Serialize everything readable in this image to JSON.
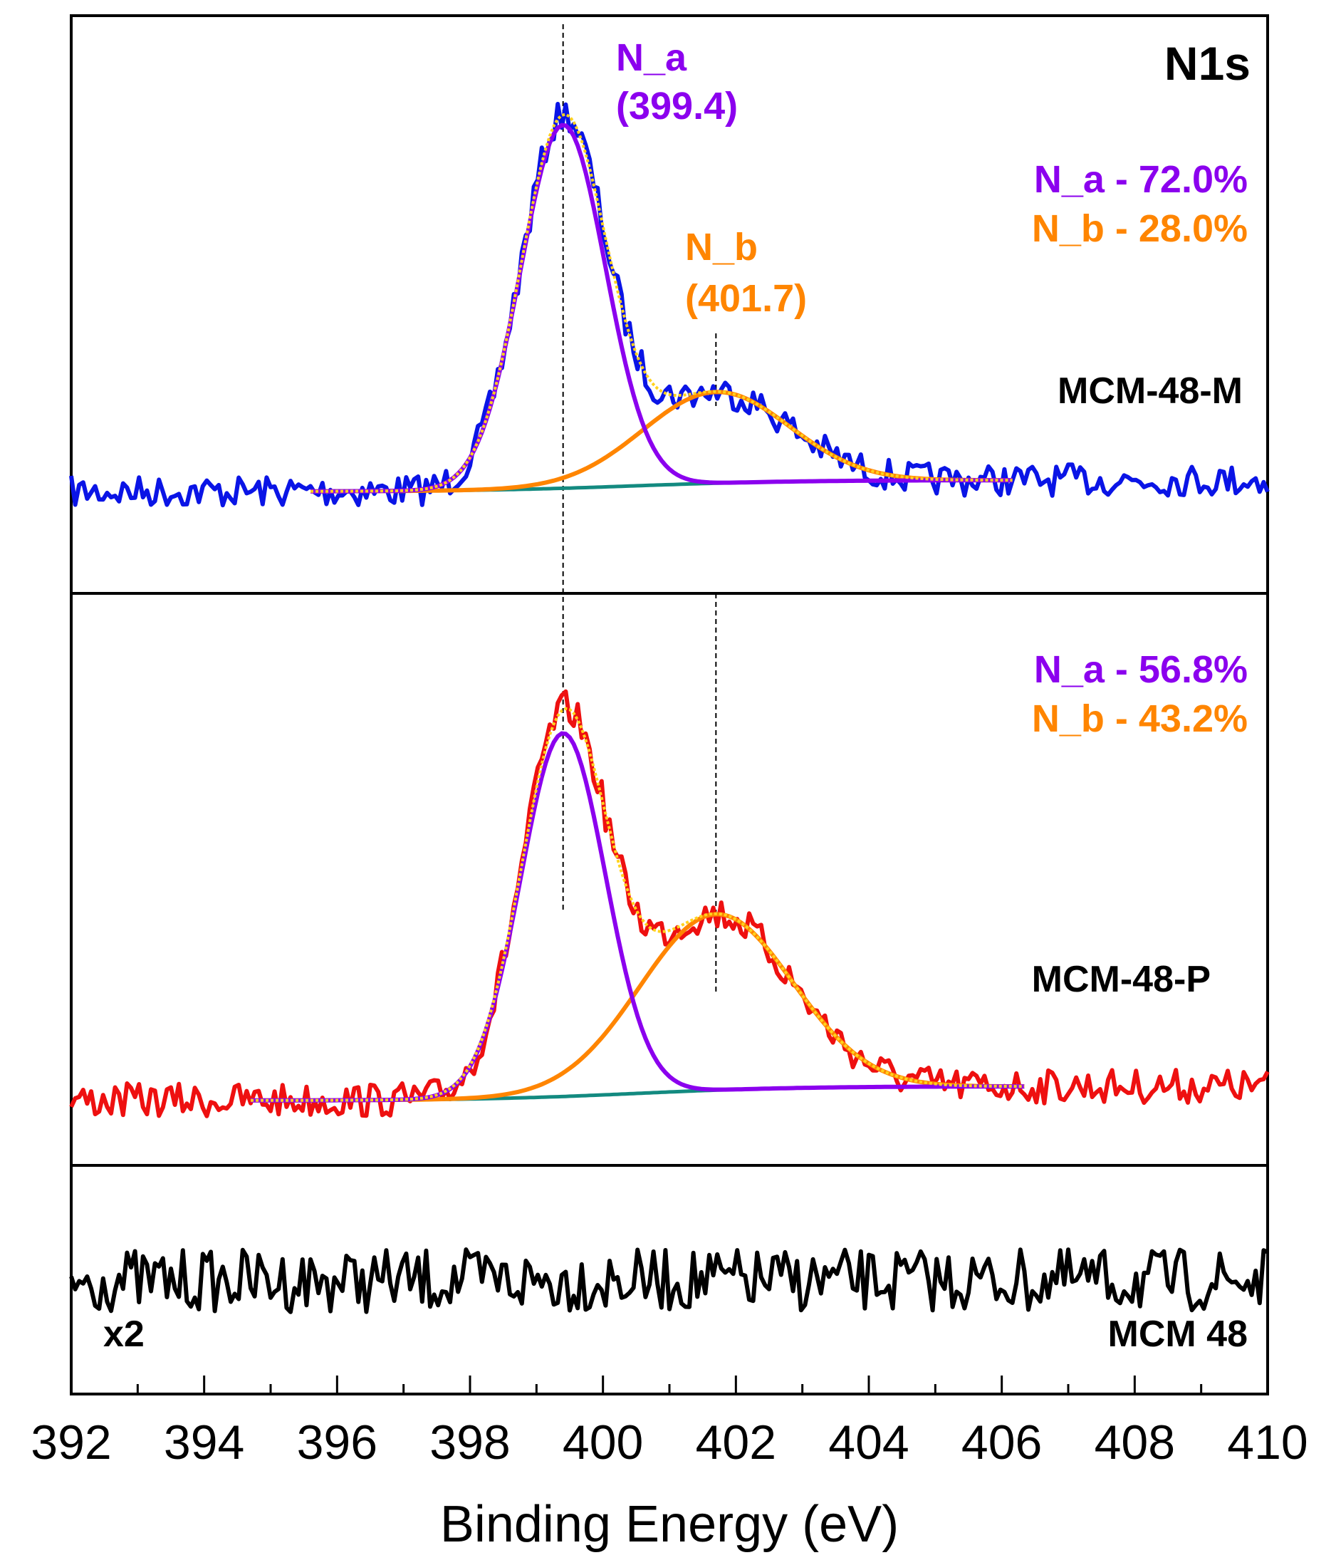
{
  "chart_data": {
    "type": "line",
    "title": "N1s",
    "xlabel": "Binding Energy (eV)",
    "ylabel": "",
    "xlim": [
      392,
      410
    ],
    "xticks": [
      392,
      394,
      396,
      398,
      400,
      402,
      404,
      406,
      408,
      410
    ],
    "xtick_labels": [
      "392",
      "394",
      "396",
      "398",
      "400",
      "402",
      "404",
      "406",
      "408",
      "410"
    ],
    "panels": [
      {
        "sample": "MCM-48-M",
        "raw_color": "#0a14e6",
        "components": [
          {
            "name": "N_a",
            "label_line1": "N_a",
            "label_line2": "(399.4)",
            "center_eV": 399.4,
            "fwhm_eV": 1.5,
            "percent_text": "N_a - 72.0%",
            "color": "#8b00ee"
          },
          {
            "name": "N_b",
            "label_line1": "N_b",
            "label_line2": "(401.7)",
            "center_eV": 401.7,
            "fwhm_eV": 2.6,
            "percent_text": "N_b - 28.0%",
            "color": "#ff8500"
          }
        ],
        "baseline_color": "#138a80",
        "envelope_color": "#ffd21e",
        "fit_range_eV": [
          395.6,
          406.2
        ]
      },
      {
        "sample": "MCM-48-P",
        "raw_color": "#ee1010",
        "components": [
          {
            "name": "N_a",
            "center_eV": 399.4,
            "fwhm_eV": 1.5,
            "percent_text": "N_a - 56.8%",
            "color": "#8b00ee"
          },
          {
            "name": "N_b",
            "center_eV": 401.7,
            "fwhm_eV": 2.7,
            "percent_text": "N_b - 43.2%",
            "color": "#ff8500"
          }
        ],
        "baseline_color": "#138a80",
        "envelope_color": "#ffd21e",
        "fit_range_eV": [
          394.7,
          406.4
        ]
      },
      {
        "sample": "MCM 48",
        "raw_color": "#000000",
        "scale_label": "x2",
        "components": []
      }
    ],
    "reference_lines_eV": [
      399.4,
      401.7
    ]
  }
}
